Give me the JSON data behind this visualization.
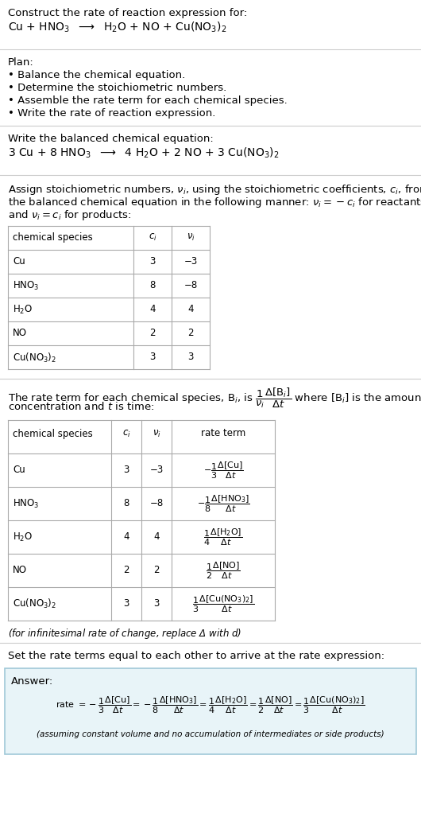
{
  "bg_color": "#ffffff",
  "text_color": "#000000",
  "answer_box_color": "#e8f4f8",
  "answer_box_border": "#a0c8d8",
  "title_line1": "Construct the rate of reaction expression for:",
  "reaction_unbalanced": "Cu + HNO$_3$  $\\longrightarrow$  H$_2$O + NO + Cu(NO$_3$)$_2$",
  "plan_header": "Plan:",
  "plan_bullets": [
    "• Balance the chemical equation.",
    "• Determine the stoichiometric numbers.",
    "• Assemble the rate term for each chemical species.",
    "• Write the rate of reaction expression."
  ],
  "balanced_header": "Write the balanced chemical equation:",
  "reaction_balanced": "3 Cu + 8 HNO$_3$  $\\longrightarrow$  4 H$_2$O + 2 NO + 3 Cu(NO$_3$)$_2$",
  "stoich_intro_parts": [
    "Assign stoichiometric numbers, $\\nu_i$, using the stoichiometric coefficients, $c_i$, from",
    "the balanced chemical equation in the following manner: $\\nu_i = -c_i$ for reactants",
    "and $\\nu_i = c_i$ for products:"
  ],
  "table1_headers": [
    "chemical species",
    "$c_i$",
    "$\\nu_i$"
  ],
  "table1_rows": [
    [
      "Cu",
      "3",
      "−3"
    ],
    [
      "HNO$_3$",
      "8",
      "−8"
    ],
    [
      "H$_2$O",
      "4",
      "4"
    ],
    [
      "NO",
      "2",
      "2"
    ],
    [
      "Cu(NO$_3$)$_2$",
      "3",
      "3"
    ]
  ],
  "rate_term_intro_parts": [
    "The rate term for each chemical species, B$_i$, is $\\dfrac{1}{\\nu_i}\\dfrac{\\Delta[\\mathrm{B}_i]}{\\Delta t}$ where [B$_i$] is the amount",
    "concentration and $t$ is time:"
  ],
  "table2_headers": [
    "chemical species",
    "$c_i$",
    "$\\nu_i$",
    "rate term"
  ],
  "table2_rows": [
    [
      "Cu",
      "3",
      "−3",
      "$-\\dfrac{1}{3}\\dfrac{\\Delta[\\mathrm{Cu}]}{\\Delta t}$"
    ],
    [
      "HNO$_3$",
      "8",
      "−8",
      "$-\\dfrac{1}{8}\\dfrac{\\Delta[\\mathrm{HNO_3}]}{\\Delta t}$"
    ],
    [
      "H$_2$O",
      "4",
      "4",
      "$\\dfrac{1}{4}\\dfrac{\\Delta[\\mathrm{H_2O}]}{\\Delta t}$"
    ],
    [
      "NO",
      "2",
      "2",
      "$\\dfrac{1}{2}\\dfrac{\\Delta[\\mathrm{NO}]}{\\Delta t}$"
    ],
    [
      "Cu(NO$_3$)$_2$",
      "3",
      "3",
      "$\\dfrac{1}{3}\\dfrac{\\Delta[\\mathrm{Cu(NO_3)_2}]}{\\Delta t}$"
    ]
  ],
  "infinitesimal_note": "(for infinitesimal rate of change, replace Δ with $d$)",
  "set_equal_text": "Set the rate terms equal to each other to arrive at the rate expression:",
  "answer_label": "Answer:",
  "rate_expression": "rate $= -\\dfrac{1}{3}\\dfrac{\\Delta[\\mathrm{Cu}]}{\\Delta t} = -\\dfrac{1}{8}\\dfrac{\\Delta[\\mathrm{HNO_3}]}{\\Delta t} = \\dfrac{1}{4}\\dfrac{\\Delta[\\mathrm{H_2O}]}{\\Delta t} = \\dfrac{1}{2}\\dfrac{\\Delta[\\mathrm{NO}]}{\\Delta t} = \\dfrac{1}{3}\\dfrac{\\Delta[\\mathrm{Cu(NO_3)_2}]}{\\Delta t}$",
  "assumption_note": "(assuming constant volume and no accumulation of intermediates or side products)"
}
